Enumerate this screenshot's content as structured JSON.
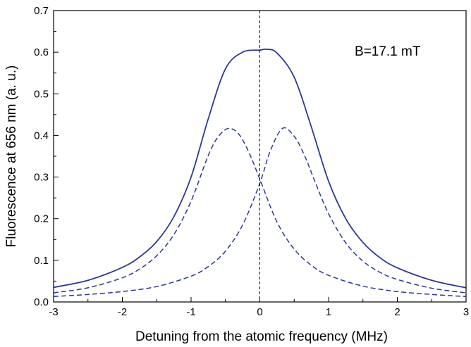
{
  "chart_data": {
    "type": "line",
    "title": "",
    "xlabel": "Detuning from the atomic frequency (MHz)",
    "ylabel": "Fluorescence at 656 nm (a. u.)",
    "xlim": [
      -3,
      3
    ],
    "ylim": [
      0,
      0.7
    ],
    "x_ticks": [
      -3,
      -2,
      -1,
      0,
      1,
      2,
      3
    ],
    "x_tick_labels": [
      "-3",
      "-2",
      "-1",
      "0",
      "1",
      "2",
      "3"
    ],
    "y_ticks": [
      0,
      0.1,
      0.2,
      0.3,
      0.4,
      0.5,
      0.6,
      0.7
    ],
    "y_tick_labels": [
      "0.0",
      "0.1",
      "0.2",
      "0.3",
      "0.4",
      "0.5",
      "0.6",
      "0.7"
    ],
    "grid": false,
    "legend": "none",
    "annotation": "B=17.1 mT",
    "reference_line": {
      "x": 0,
      "style": "dashed",
      "color": "#000000"
    },
    "series_color": "#2b3990",
    "series": [
      {
        "style": "solid",
        "x": [
          -3,
          -2.5,
          -2,
          -1.75,
          -1.5,
          -1.25,
          -1,
          -0.75,
          -0.5,
          -0.25,
          0,
          0.1,
          0.25,
          0.5,
          0.75,
          1,
          1.25,
          1.5,
          1.75,
          2,
          2.5,
          3
        ],
        "y": [
          0.035,
          0.052,
          0.083,
          0.108,
          0.145,
          0.205,
          0.3,
          0.44,
          0.56,
          0.6,
          0.605,
          0.607,
          0.598,
          0.54,
          0.42,
          0.29,
          0.2,
          0.143,
          0.106,
          0.082,
          0.052,
          0.034
        ]
      },
      {
        "style": "dashed",
        "x": [
          -3,
          -2.5,
          -2,
          -1.75,
          -1.5,
          -1.25,
          -1,
          -0.75,
          -0.6,
          -0.45,
          -0.3,
          -0.15,
          0,
          0.25,
          0.5,
          0.75,
          1,
          1.5,
          2,
          2.5,
          3
        ],
        "y": [
          0.022,
          0.034,
          0.058,
          0.079,
          0.111,
          0.162,
          0.242,
          0.352,
          0.398,
          0.417,
          0.402,
          0.356,
          0.295,
          0.192,
          0.127,
          0.088,
          0.064,
          0.038,
          0.025,
          0.018,
          0.013
        ]
      },
      {
        "style": "dashed",
        "x": [
          -3,
          -2.5,
          -2,
          -1.5,
          -1,
          -0.75,
          -0.5,
          -0.25,
          0,
          0.15,
          0.33,
          0.5,
          0.65,
          0.8,
          1,
          1.25,
          1.5,
          1.75,
          2,
          2.5,
          3
        ],
        "y": [
          0.013,
          0.018,
          0.025,
          0.037,
          0.062,
          0.085,
          0.122,
          0.185,
          0.285,
          0.362,
          0.417,
          0.398,
          0.352,
          0.29,
          0.212,
          0.142,
          0.098,
          0.071,
          0.054,
          0.033,
          0.022
        ]
      }
    ]
  }
}
